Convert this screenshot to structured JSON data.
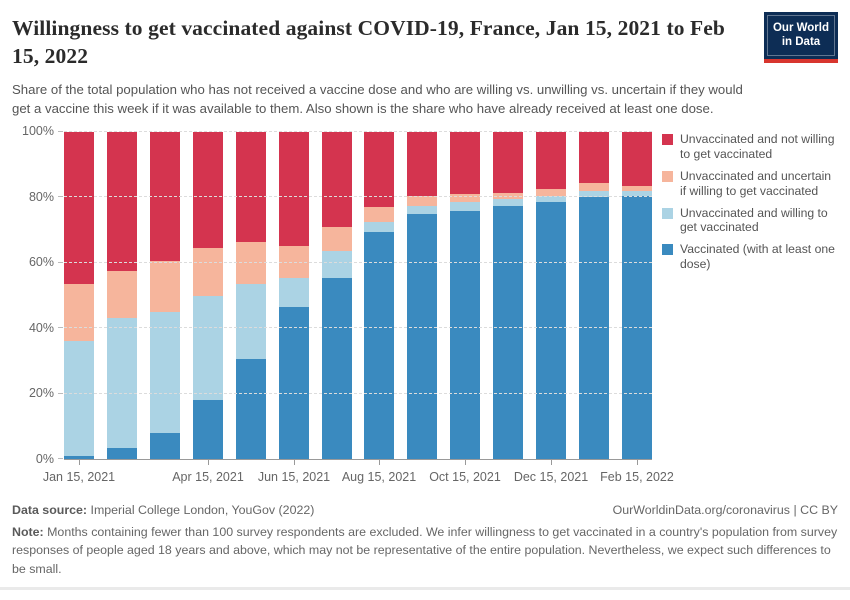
{
  "header": {
    "title": "Willingness to get vaccinated against COVID-19, France, Jan 15, 2021 to Feb 15, 2022",
    "subtitle": "Share of the total population who has not received a vaccine dose and who are willing vs. unwilling vs. uncertain if they would get a vaccine this week if it was available to them. Also shown is the share who have already received at least one dose.",
    "logo": {
      "line1": "Our World",
      "line2": "in Data",
      "bg_color": "#0d2d55",
      "stripe_color": "#d8352e"
    }
  },
  "chart_data": {
    "type": "bar",
    "stacked": true,
    "title": "Willingness to get vaccinated against COVID-19, France",
    "categories": [
      "Jan 15, 2021",
      "Feb 15, 2021",
      "Mar 15, 2021",
      "Apr 15, 2021",
      "May 15, 2021",
      "Jun 15, 2021",
      "Jul 15, 2021",
      "Aug 15, 2021",
      "Sep 15, 2021",
      "Oct 15, 2021",
      "Nov 15, 2021",
      "Dec 15, 2021",
      "Jan 15, 2022",
      "Feb 15, 2022"
    ],
    "series": [
      {
        "name": "Vaccinated (with at least one dose)",
        "color": "#3a8abf",
        "values": [
          1,
          3.5,
          8,
          18,
          30.5,
          46.5,
          55.5,
          69.5,
          75,
          76,
          77.5,
          78.5,
          80,
          80.5
        ]
      },
      {
        "name": "Unvaccinated and willing to get vaccinated",
        "color": "#abd3e4",
        "values": [
          35,
          39.5,
          37,
          32,
          23,
          9,
          8,
          3,
          2.5,
          2.5,
          2,
          2,
          2,
          1.5
        ]
      },
      {
        "name": "Unvaccinated and uncertain if willing to get vaccinated",
        "color": "#f6b59c",
        "values": [
          17.5,
          14.5,
          15.5,
          14.5,
          13,
          9.5,
          7.5,
          4.5,
          3,
          2.5,
          2,
          2,
          2.5,
          1.5
        ]
      },
      {
        "name": "Unvaccinated and not willing to get vaccinated",
        "color": "#d4344f",
        "values": [
          46.5,
          42.5,
          39.5,
          35.5,
          33.5,
          35,
          29,
          23,
          19.5,
          19,
          18.5,
          17.5,
          15.5,
          16.5
        ]
      }
    ],
    "ylim": [
      0,
      100
    ],
    "y_ticks": [
      "0%",
      "20%",
      "40%",
      "60%",
      "80%",
      "100%"
    ],
    "x_ticks": [
      {
        "label": "Jan 15, 2021",
        "bar_index": 0
      },
      {
        "label": "Apr 15, 2021",
        "bar_index": 3
      },
      {
        "label": "Jun 15, 2021",
        "bar_index": 5
      },
      {
        "label": "Aug 15, 2021",
        "bar_index": 7
      },
      {
        "label": "Oct 15, 2021",
        "bar_index": 9
      },
      {
        "label": "Dec 15, 2021",
        "bar_index": 11
      },
      {
        "label": "Feb 15, 2022",
        "bar_index": 13
      }
    ],
    "grid": "horizontal-dashed",
    "legend_position": "right",
    "legend_order": "reverse-of-stack"
  },
  "footer": {
    "data_source_label": "Data source:",
    "data_source_text": " Imperial College London, YouGov (2022)",
    "attribution_url": "OurWorldinData.org/coronavirus",
    "attribution_separator": " | ",
    "attribution_license": "CC BY",
    "note_label": "Note:",
    "note_text": " Months containing fewer than 100 survey respondents are excluded. We infer willingness to get vaccinated in a country's population from survey responses of people aged 18 years and above, which may not be representative of the entire population. Nevertheless, we expect such differences to be small."
  }
}
